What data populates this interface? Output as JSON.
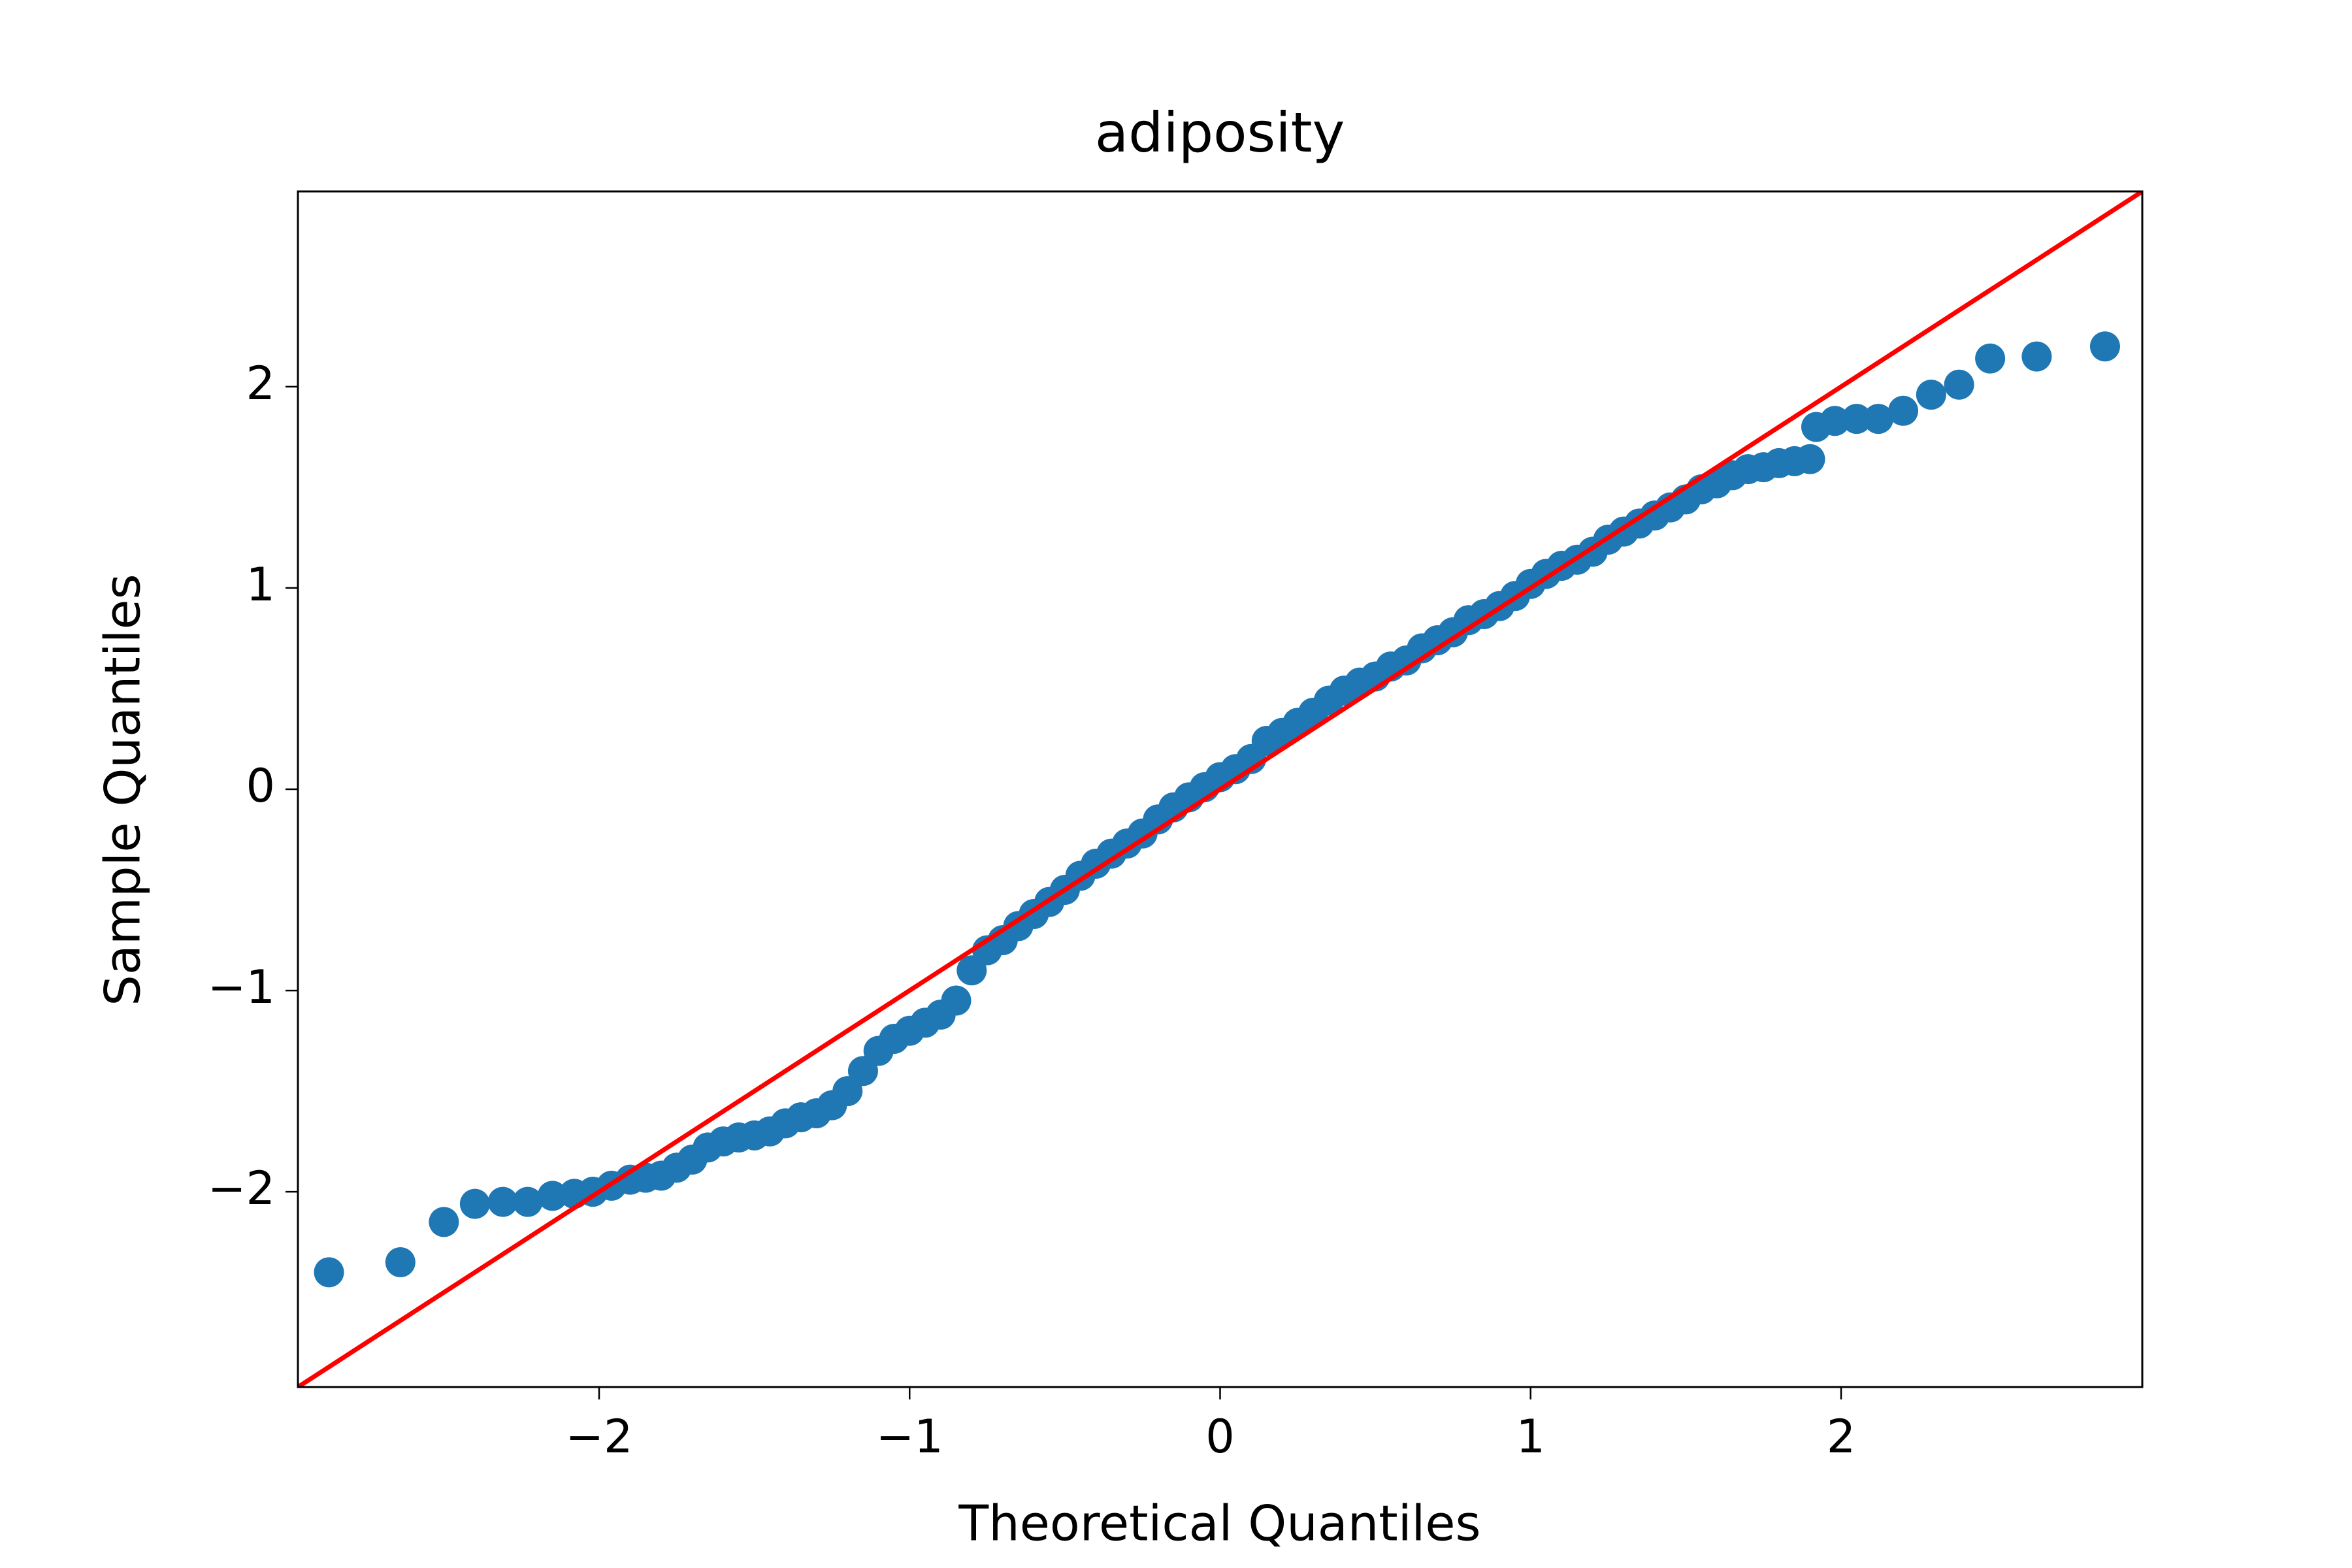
{
  "chart_data": {
    "type": "scatter",
    "title": "adiposity",
    "xlabel": "Theoretical Quantiles",
    "ylabel": "Sample Quantiles",
    "color": "#1f77b4",
    "x": [
      -2.87,
      -2.64,
      -2.5,
      -2.4,
      -2.31,
      -2.23,
      -2.15,
      -2.08,
      -2.02,
      -1.96,
      -1.9,
      -1.85,
      -1.8,
      -1.75,
      -1.7,
      -1.65,
      -1.6,
      -1.55,
      -1.5,
      -1.45,
      -1.4,
      -1.35,
      -1.3,
      -1.25,
      -1.2,
      -1.15,
      -1.1,
      -1.05,
      -1.0,
      -0.95,
      -0.9,
      -0.85,
      -0.8,
      -0.75,
      -0.7,
      -0.65,
      -0.6,
      -0.55,
      -0.5,
      -0.45,
      -0.4,
      -0.35,
      -0.3,
      -0.25,
      -0.2,
      -0.15,
      -0.1,
      -0.05,
      0.0,
      0.05,
      0.1,
      0.15,
      0.2,
      0.25,
      0.3,
      0.35,
      0.4,
      0.45,
      0.5,
      0.55,
      0.6,
      0.65,
      0.7,
      0.75,
      0.8,
      0.85,
      0.9,
      0.95,
      1.0,
      1.05,
      1.1,
      1.15,
      1.2,
      1.25,
      1.3,
      1.35,
      1.4,
      1.45,
      1.5,
      1.55,
      1.6,
      1.65,
      1.7,
      1.75,
      1.8,
      1.85,
      1.9,
      1.92,
      1.98,
      2.05,
      2.12,
      2.2,
      2.29,
      2.38,
      2.48,
      2.63,
      2.85
    ],
    "values": [
      -2.4,
      -2.35,
      -2.15,
      -2.06,
      -2.05,
      -2.05,
      -2.02,
      -2.01,
      -2.0,
      -1.97,
      -1.94,
      -1.93,
      -1.92,
      -1.88,
      -1.84,
      -1.78,
      -1.75,
      -1.73,
      -1.72,
      -1.7,
      -1.66,
      -1.63,
      -1.61,
      -1.57,
      -1.5,
      -1.4,
      -1.3,
      -1.24,
      -1.2,
      -1.16,
      -1.12,
      -1.05,
      -0.9,
      -0.8,
      -0.75,
      -0.68,
      -0.62,
      -0.56,
      -0.5,
      -0.43,
      -0.37,
      -0.32,
      -0.27,
      -0.22,
      -0.15,
      -0.09,
      -0.04,
      0.01,
      0.06,
      0.1,
      0.15,
      0.24,
      0.28,
      0.33,
      0.38,
      0.44,
      0.49,
      0.53,
      0.56,
      0.61,
      0.64,
      0.7,
      0.74,
      0.78,
      0.84,
      0.87,
      0.91,
      0.96,
      1.02,
      1.07,
      1.11,
      1.14,
      1.18,
      1.24,
      1.28,
      1.32,
      1.36,
      1.4,
      1.44,
      1.49,
      1.52,
      1.56,
      1.59,
      1.6,
      1.62,
      1.63,
      1.64,
      1.8,
      1.83,
      1.84,
      1.84,
      1.88,
      1.96,
      2.01,
      2.14,
      2.15,
      2.2
    ],
    "reference_line": {
      "x": [
        -2.97,
        2.97
      ],
      "y": [
        -2.97,
        2.97
      ],
      "color": "#ff0000"
    },
    "xlim": [
      -2.97,
      2.97
    ],
    "ylim": [
      -2.97,
      2.97
    ],
    "xticks": [
      {
        "value": -2,
        "label": "−2"
      },
      {
        "value": -1,
        "label": "−1"
      },
      0,
      1,
      2
    ],
    "yticks": [
      {
        "value": -2,
        "label": "−2"
      },
      {
        "value": -1,
        "label": "−1"
      },
      0,
      1,
      2
    ],
    "grid": false
  }
}
